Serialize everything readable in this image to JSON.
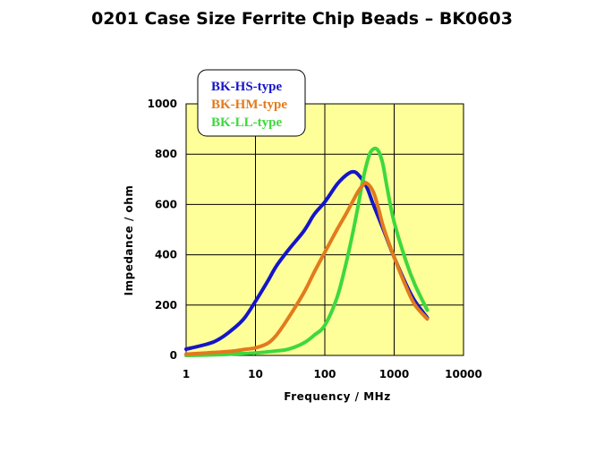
{
  "page_title": "0201 Case Size Ferrite Chip Beads – BK0603",
  "colors": {
    "plot_bg": "#ffff99",
    "grid": "#000000",
    "hs": "#1515c8",
    "hm": "#e27a1e",
    "ll": "#3ed83e"
  },
  "chart_data": {
    "type": "line",
    "title": "0201 Case Size Ferrite Chip Beads – BK0603",
    "xlabel": "Frequency / MHz",
    "ylabel": "Impedance / ohm",
    "xscale": "log",
    "xlim": [
      1,
      10000
    ],
    "ylim": [
      0,
      1000
    ],
    "x_ticks": [
      1,
      10,
      100,
      1000,
      10000
    ],
    "x_tick_labels": [
      "1",
      "10",
      "100",
      "1000",
      "10000"
    ],
    "y_ticks": [
      0,
      200,
      400,
      600,
      800,
      1000
    ],
    "y_tick_labels": [
      "0",
      "200",
      "400",
      "600",
      "800",
      "1000"
    ],
    "grid": true,
    "legend_position": "top-left",
    "series": [
      {
        "name": "BK-HS-type",
        "color": "#1515c8",
        "x": [
          1,
          2,
          3,
          5,
          7,
          10,
          15,
          20,
          30,
          50,
          70,
          100,
          150,
          200,
          250,
          300,
          400,
          500,
          700,
          1000,
          1500,
          2000,
          3000
        ],
        "y": [
          25,
          45,
          65,
          110,
          150,
          215,
          295,
          355,
          420,
          495,
          560,
          610,
          680,
          715,
          730,
          720,
          670,
          600,
          500,
          390,
          280,
          215,
          150
        ]
      },
      {
        "name": "BK-HM-type",
        "color": "#e27a1e",
        "x": [
          1,
          2,
          3,
          5,
          7,
          10,
          15,
          20,
          30,
          50,
          70,
          100,
          150,
          200,
          250,
          300,
          350,
          400,
          500,
          600,
          700,
          1000,
          1500,
          2000,
          3000
        ],
        "y": [
          5,
          10,
          13,
          18,
          24,
          30,
          48,
          80,
          150,
          250,
          330,
          410,
          500,
          560,
          610,
          650,
          675,
          685,
          650,
          580,
          510,
          390,
          270,
          200,
          145
        ]
      },
      {
        "name": "BK-LL-type",
        "color": "#3ed83e",
        "x": [
          1,
          3,
          5,
          10,
          20,
          30,
          50,
          70,
          100,
          150,
          200,
          250,
          300,
          350,
          400,
          450,
          500,
          550,
          600,
          650,
          700,
          800,
          1000,
          1500,
          2000,
          3000
        ],
        "y": [
          0,
          3,
          6,
          10,
          18,
          25,
          50,
          80,
          120,
          230,
          360,
          480,
          590,
          690,
          760,
          805,
          820,
          822,
          810,
          785,
          750,
          660,
          530,
          370,
          280,
          180
        ]
      }
    ]
  }
}
